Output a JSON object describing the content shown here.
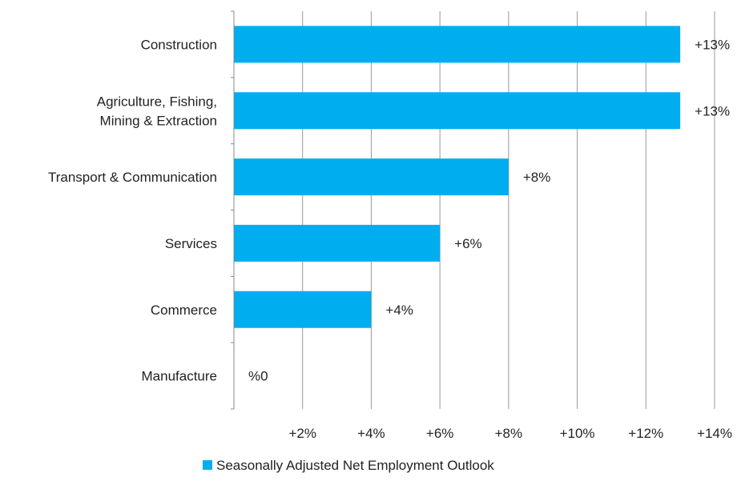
{
  "chart_data": {
    "type": "bar",
    "orientation": "horizontal",
    "categories": [
      [
        "Construction"
      ],
      [
        "Agriculture, Fishing,",
        "Mining & Extraction"
      ],
      [
        "Transport & Communication"
      ],
      [
        "Services"
      ],
      [
        "Commerce"
      ],
      [
        "Manufacture"
      ]
    ],
    "series": [
      {
        "name": "Seasonally Adjusted Net Employment Outlook",
        "values": [
          13,
          13,
          8,
          6,
          4,
          0
        ],
        "data_labels": [
          "+13%",
          "+13%",
          "+8%",
          "+6%",
          "+4%",
          "%0"
        ],
        "color": "#00AEEF"
      }
    ],
    "xlim": [
      0,
      14
    ],
    "x_ticks": [
      2,
      4,
      6,
      8,
      10,
      12,
      14
    ],
    "x_tick_labels": [
      "+2%",
      "+4%",
      "+6%",
      "+8%",
      "+10%",
      "+12%",
      "+14%"
    ],
    "grid": true,
    "gridline_color": "#999999",
    "legend_position": "bottom"
  }
}
